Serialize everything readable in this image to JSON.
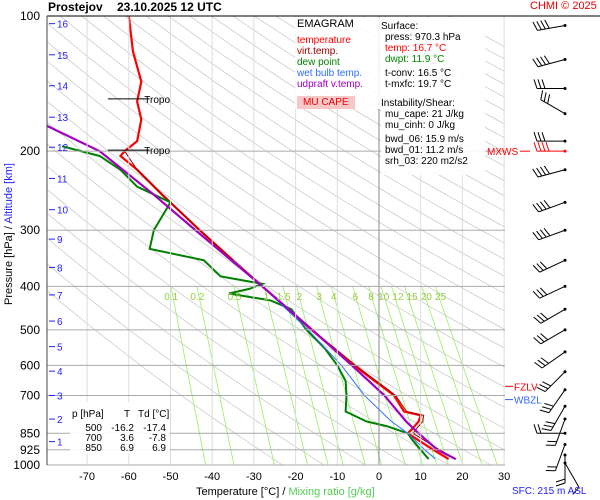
{
  "header": {
    "station": "Prostejov",
    "datetime": "23.10.2025 12 UTC",
    "credit": "CHMI © 2025"
  },
  "legend": {
    "title": "EMAGRAM",
    "items": [
      {
        "label": "temperature",
        "color": "#ff0000"
      },
      {
        "label": "virt.temp.",
        "color": "#a00000"
      },
      {
        "label": "dew point",
        "color": "#008000"
      },
      {
        "label": "wet bulb temp.",
        "color": "#3070ff"
      },
      {
        "label": "udpraft v.temp.",
        "color": "#a000c0"
      }
    ],
    "badge": "MU CAPE"
  },
  "info": {
    "surface_title": "Surface:",
    "press": "press: 970.3 hPa",
    "temp": "temp: 16.7 °C",
    "dwpt": "dwpt: 11.9 °C",
    "tconv": "t-conv: 16.5 °C",
    "tmxfc": "t-mxfc: 19.7 °C",
    "instab_title": "Instability/Shear:",
    "mu_cape": "mu_cape: 21 J/kg",
    "mu_cinh": "mu_cinh: 0 J/kg",
    "bwd_06": "bwd_06: 15.9 m/s",
    "bwd_01": "bwd_01: 11.2 m/s",
    "srh_03": "srh_03: 220 m2/s2"
  },
  "levels_labels": {
    "mxws": "MXWS",
    "fzlv": "FZLV",
    "wbzl": "WBZL",
    "tropo": "Tropo",
    "sfc": "SFC: 215 m ASL"
  },
  "table": {
    "headers": [
      "p [hPa]",
      "T",
      "Td [°C]"
    ],
    "rows": [
      [
        "500",
        "-16.2",
        "-17.4"
      ],
      [
        "700",
        "3.6",
        "-7.8"
      ],
      [
        "850",
        "6.9",
        "6.9"
      ]
    ]
  },
  "axis": {
    "xlabel_temp": "Temperature [°C]",
    "xlabel_sep": "/",
    "xlabel_mix": "Mixing ratio [g/kg]",
    "ylabel_p": "Pressure [hPa]",
    "ylabel_sep": "/",
    "ylabel_alt": "Altitude [km]"
  },
  "chart_data": {
    "type": "line",
    "title": "EMAGRAM",
    "xlim": [
      -80,
      30
    ],
    "ylim_hPa": [
      1000,
      100
    ],
    "x_ticks": [
      -70,
      -60,
      -50,
      -40,
      -30,
      -20,
      -10,
      0,
      10,
      20,
      30
    ],
    "pressure_ticks": [
      100,
      200,
      300,
      400,
      500,
      600,
      700,
      850,
      925,
      1000
    ],
    "altitude_ticks_km": [
      {
        "km": 1,
        "p": 887
      },
      {
        "km": 2,
        "p": 790
      },
      {
        "km": 3,
        "p": 700
      },
      {
        "km": 4,
        "p": 618
      },
      {
        "km": 5,
        "p": 545
      },
      {
        "km": 6,
        "p": 478
      },
      {
        "km": 7,
        "p": 418
      },
      {
        "km": 8,
        "p": 363
      },
      {
        "km": 9,
        "p": 314
      },
      {
        "km": 10,
        "p": 270
      },
      {
        "km": 11,
        "p": 230
      },
      {
        "km": 12,
        "p": 196
      },
      {
        "km": 13,
        "p": 168
      },
      {
        "km": 14,
        "p": 143
      },
      {
        "km": 15,
        "p": 122
      },
      {
        "km": 16,
        "p": 104
      }
    ],
    "mixing_ratio_labels": [
      "0.1",
      "0.2",
      "0.5",
      "1",
      "1.5",
      "2",
      "3",
      "4",
      "6",
      "8",
      "10",
      "12",
      "15",
      "20",
      "25"
    ],
    "special_levels": {
      "tropopause_hPa": [
        199,
        153
      ],
      "fzlv_hPa": 668,
      "wbzl_hPa": 715,
      "mxws_hPa": 200
    },
    "series": [
      {
        "name": "temperature",
        "color": "#ff0000",
        "p": [
          970,
          925,
          850,
          830,
          800,
          775,
          760,
          700,
          600,
          500,
          400,
          350,
          300,
          250,
          220,
          205,
          200,
          190,
          170,
          155,
          140,
          120,
          100
        ],
        "t": [
          16.7,
          13,
          6.9,
          8,
          9.5,
          10,
          6,
          3.6,
          -6,
          -16.2,
          -28,
          -35,
          -43,
          -52,
          -58,
          -62,
          -61,
          -58,
          -57,
          -58,
          -57,
          -59,
          -60
        ]
      },
      {
        "name": "virt.temp.",
        "color": "#a00000",
        "p": [
          970,
          925,
          850,
          830,
          800,
          775,
          760,
          700,
          600,
          500,
          400,
          350,
          300,
          250,
          220,
          200
        ],
        "t": [
          18.5,
          14.5,
          8.2,
          9,
          10.5,
          10.7,
          6.6,
          4,
          -5.6,
          -16,
          -27.9,
          -35,
          -43,
          -52,
          -58,
          -61
        ]
      },
      {
        "name": "dew point",
        "color": "#008000",
        "p": [
          970,
          925,
          880,
          850,
          820,
          800,
          760,
          700,
          650,
          600,
          550,
          500,
          450,
          430,
          415,
          405,
          395,
          380,
          350,
          330,
          300,
          260,
          240,
          220,
          205,
          195
        ],
        "t": [
          11.9,
          10,
          8,
          6.9,
          2,
          -3,
          -8,
          -7.8,
          -8,
          -10,
          -13,
          -17.4,
          -21,
          -26,
          -36,
          -31,
          -28,
          -38,
          -42,
          -55,
          -54,
          -50,
          -58,
          -62,
          -67,
          -76
        ]
      },
      {
        "name": "wet bulb temp.",
        "color": "#3070ff",
        "p": [
          970,
          925,
          850,
          800,
          700,
          600,
          500,
          400,
          350
        ],
        "t": [
          13.5,
          11,
          6.9,
          3,
          -3.5,
          -9,
          -17,
          -28,
          -35
        ]
      },
      {
        "name": "udpraft v.temp.",
        "color": "#a000c0",
        "p": [
          970,
          925,
          850,
          800,
          700,
          600,
          500,
          400,
          300,
          250,
          200,
          175
        ],
        "t": [
          18.4,
          14,
          9.5,
          6.5,
          1.3,
          -6.5,
          -16,
          -28,
          -44,
          -54,
          -67,
          -80
        ]
      }
    ],
    "wind_barbs": [
      {
        "p": 105,
        "dir": 260,
        "kt": 35
      },
      {
        "p": 125,
        "dir": 255,
        "kt": 35
      },
      {
        "p": 145,
        "dir": 270,
        "kt": 30
      },
      {
        "p": 165,
        "dir": 300,
        "kt": 30
      },
      {
        "p": 190,
        "dir": 270,
        "kt": 30
      },
      {
        "p": 200,
        "dir": 270,
        "kt": 35
      },
      {
        "p": 220,
        "dir": 255,
        "kt": 40
      },
      {
        "p": 260,
        "dir": 250,
        "kt": 35
      },
      {
        "p": 300,
        "dir": 250,
        "kt": 35
      },
      {
        "p": 350,
        "dir": 245,
        "kt": 30
      },
      {
        "p": 400,
        "dir": 245,
        "kt": 30
      },
      {
        "p": 450,
        "dir": 240,
        "kt": 30
      },
      {
        "p": 500,
        "dir": 240,
        "kt": 25
      },
      {
        "p": 560,
        "dir": 235,
        "kt": 25
      },
      {
        "p": 620,
        "dir": 225,
        "kt": 25
      },
      {
        "p": 680,
        "dir": 215,
        "kt": 25
      },
      {
        "p": 740,
        "dir": 210,
        "kt": 25
      },
      {
        "p": 790,
        "dir": 200,
        "kt": 20
      },
      {
        "p": 850,
        "dir": 270,
        "kt": 20
      },
      {
        "p": 900,
        "dir": 200,
        "kt": 15
      },
      {
        "p": 950,
        "dir": 180,
        "kt": 15
      },
      {
        "p": 990,
        "dir": 150,
        "kt": 10
      }
    ]
  }
}
